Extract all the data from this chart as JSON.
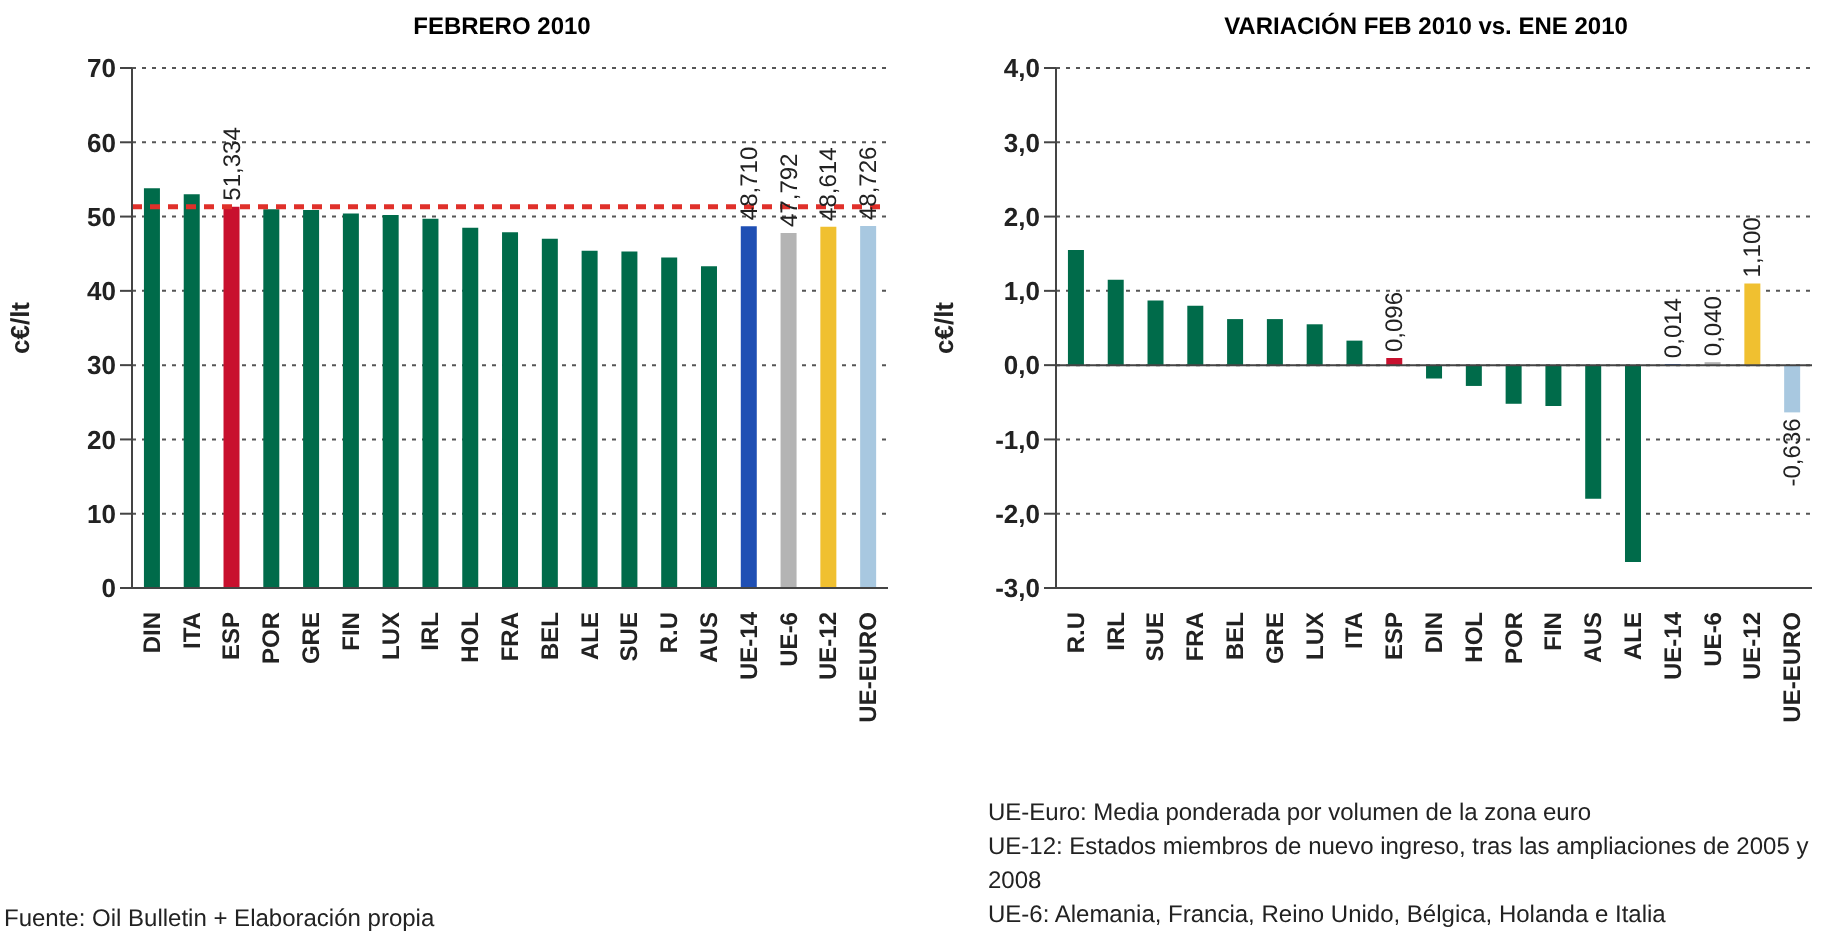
{
  "chart_data": [
    {
      "type": "bar",
      "title": "FEBRERO 2010",
      "ylabel": "c€/lt",
      "categories": [
        "DIN",
        "ITA",
        "ESP",
        "POR",
        "GRE",
        "FIN",
        "LUX",
        "IRL",
        "HOL",
        "FRA",
        "BEL",
        "ALE",
        "SUE",
        "R.U",
        "AUS",
        "UE-14",
        "UE-6",
        "UE-12",
        "UE-EURO"
      ],
      "values": [
        53.8,
        53.0,
        51.334,
        51.0,
        50.9,
        50.4,
        50.2,
        49.7,
        48.5,
        47.9,
        47.0,
        45.4,
        45.3,
        44.5,
        43.3,
        48.71,
        47.792,
        48.614,
        48.726
      ],
      "value_labels": [
        null,
        null,
        "51,334",
        null,
        null,
        null,
        null,
        null,
        null,
        null,
        null,
        null,
        null,
        null,
        null,
        "48,710",
        "47,792",
        "48,614",
        "48,726"
      ],
      "colors": [
        "#006b4a",
        "#006b4a",
        "#c8102e",
        "#006b4a",
        "#006b4a",
        "#006b4a",
        "#006b4a",
        "#006b4a",
        "#006b4a",
        "#006b4a",
        "#006b4a",
        "#006b4a",
        "#006b4a",
        "#006b4a",
        "#006b4a",
        "#1f4fb4",
        "#b4b4b4",
        "#f0c030",
        "#a8c8e0"
      ],
      "ylim": [
        0,
        70
      ],
      "yticks": [
        0,
        10,
        20,
        30,
        40,
        50,
        60,
        70
      ],
      "grid": "y",
      "ref_lines": [
        {
          "axis": "y",
          "value": 51.334,
          "color": "#e0302a",
          "line_style": "dashed"
        }
      ],
      "annotations": [
        "Fuente: Oil Bulletin  + Elaboración propia"
      ]
    },
    {
      "type": "bar",
      "title": "VARIACIÓN FEB 2010 vs. ENE 2010",
      "ylabel": "c€/lt",
      "categories": [
        "R.U",
        "IRL",
        "SUE",
        "FRA",
        "BEL",
        "GRE",
        "LUX",
        "ITA",
        "ESP",
        "DIN",
        "HOL",
        "POR",
        "FIN",
        "AUS",
        "ALE",
        "UE-14",
        "UE-6",
        "UE-12",
        "UE-EURO"
      ],
      "values": [
        1.55,
        1.15,
        0.87,
        0.8,
        0.62,
        0.62,
        0.55,
        0.33,
        0.096,
        -0.18,
        -0.28,
        -0.52,
        -0.55,
        -1.8,
        -2.65,
        0.014,
        0.04,
        1.1,
        -0.636
      ],
      "value_labels": [
        null,
        null,
        null,
        null,
        null,
        null,
        null,
        null,
        "0,096",
        null,
        null,
        null,
        null,
        null,
        null,
        "0,014",
        "0,040",
        "1,100",
        "-0,636"
      ],
      "colors": [
        "#006b4a",
        "#006b4a",
        "#006b4a",
        "#006b4a",
        "#006b4a",
        "#006b4a",
        "#006b4a",
        "#006b4a",
        "#c8102e",
        "#006b4a",
        "#006b4a",
        "#006b4a",
        "#006b4a",
        "#006b4a",
        "#006b4a",
        "#1f4fb4",
        "#b4b4b4",
        "#f0c030",
        "#a8c8e0"
      ],
      "ylim": [
        -3,
        4
      ],
      "yticks": [
        {
          "value": -3,
          "label": "-3,0"
        },
        {
          "value": -2,
          "label": "-2,0"
        },
        {
          "value": -1,
          "label": "-1,0"
        },
        {
          "value": 0,
          "label": "0,0"
        },
        {
          "value": 1,
          "label": "1,0"
        },
        {
          "value": 2,
          "label": "2,0"
        },
        {
          "value": 3,
          "label": "3,0"
        },
        {
          "value": 4,
          "label": "4,0"
        }
      ],
      "grid": "y",
      "annotations": [
        "UE-Euro: Media ponderada por volumen de la zona euro",
        "UE-12: Estados miembros de nuevo ingreso, tras las ampliaciones de 2005 y 2008",
        "UE-6: Alemania, Francia, Reino Unido, Bélgica, Holanda e Italia"
      ]
    }
  ]
}
